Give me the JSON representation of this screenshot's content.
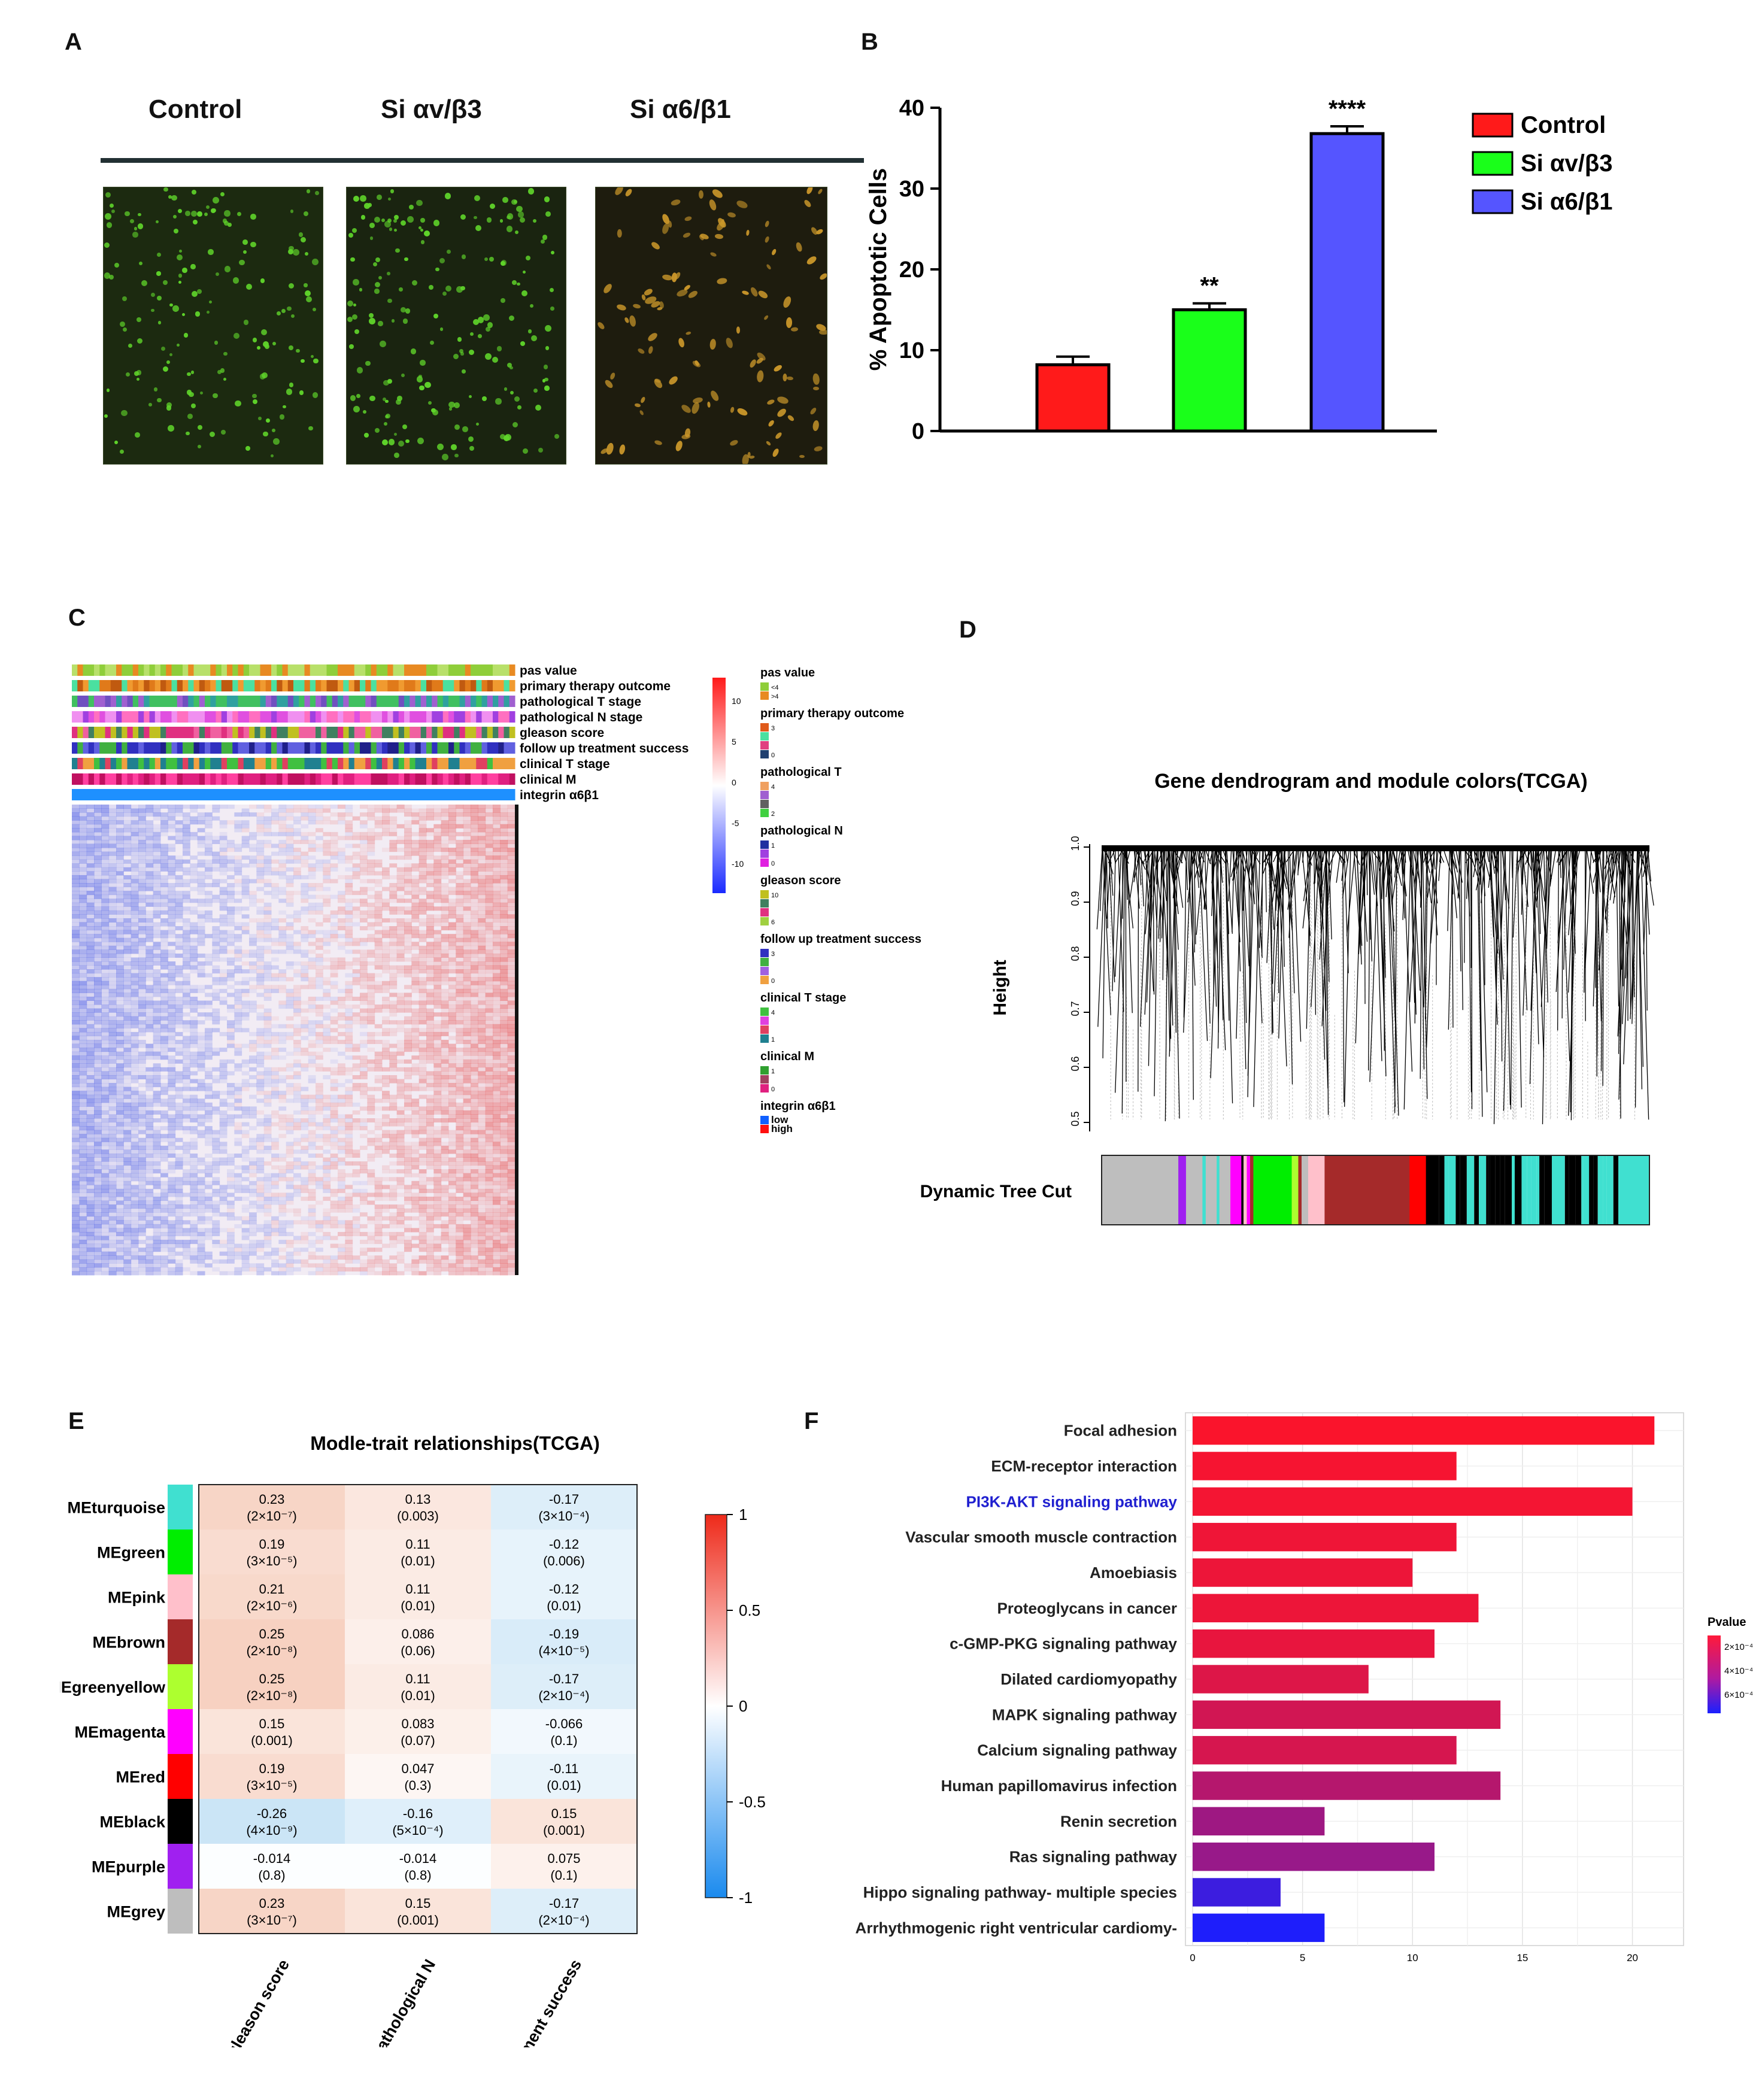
{
  "panels": {
    "A": "A",
    "B": "B",
    "C": "C",
    "D": "D",
    "E": "E",
    "F": "F"
  },
  "panelA": {
    "columns": [
      "Control",
      "Si αv/β3",
      "Si α6/β1"
    ],
    "colors": {
      "green": "#5fd42a",
      "orange": "#c9962a",
      "bg": "#1c2a10"
    }
  },
  "chart_data": [
    {
      "id": "B",
      "type": "bar",
      "categories": [
        "Control",
        "Si αv/β3",
        "Si α6/β1"
      ],
      "values": [
        8.2,
        15.0,
        36.8
      ],
      "errors": [
        1.0,
        0.8,
        0.9
      ],
      "significance": [
        "",
        "**",
        "****"
      ],
      "ylabel": "% Apoptotic Cells",
      "ylim": [
        0,
        40
      ],
      "yticks": [
        0,
        10,
        20,
        30,
        40
      ],
      "colors": [
        "#ff1a1a",
        "#1aff1a",
        "#5555ff"
      ],
      "legend": [
        "Control",
        "Si αv/β3",
        "Si α6/β1"
      ],
      "legend_position": "right"
    },
    {
      "id": "E",
      "type": "heatmap",
      "title": "Modle-trait relationships(TCGA)",
      "rows": [
        {
          "name": "MEturquoise",
          "color": "#40e0d0",
          "cells": [
            [
              "0.23",
              "(2×10⁻⁷)",
              0.23
            ],
            [
              "0.13",
              "(0.003)",
              0.13
            ],
            [
              "-0.17",
              "(3×10⁻⁴)",
              -0.17
            ]
          ]
        },
        {
          "name": "MEgreen",
          "color": "#00ee00",
          "cells": [
            [
              "0.19",
              "(3×10⁻⁵)",
              0.19
            ],
            [
              "0.11",
              "(0.01)",
              0.11
            ],
            [
              "-0.12",
              "(0.006)",
              -0.12
            ]
          ]
        },
        {
          "name": "MEpink",
          "color": "#ffc0cb",
          "cells": [
            [
              "0.21",
              "(2×10⁻⁶)",
              0.21
            ],
            [
              "0.11",
              "(0.01)",
              0.11
            ],
            [
              "-0.12",
              "(0.01)",
              -0.12
            ]
          ]
        },
        {
          "name": "MEbrown",
          "color": "#a52a2a",
          "cells": [
            [
              "0.25",
              "(2×10⁻⁸)",
              0.25
            ],
            [
              "0.086",
              "(0.06)",
              0.086
            ],
            [
              "-0.19",
              "(4×10⁻⁵)",
              -0.19
            ]
          ]
        },
        {
          "name": "MEgreenyellow",
          "color": "#adff2f",
          "cells": [
            [
              "0.25",
              "(2×10⁻⁸)",
              0.25
            ],
            [
              "0.11",
              "(0.01)",
              0.11
            ],
            [
              "-0.17",
              "(2×10⁻⁴)",
              -0.17
            ]
          ]
        },
        {
          "name": "MEmagenta",
          "color": "#ff00ff",
          "cells": [
            [
              "0.15",
              "(0.001)",
              0.15
            ],
            [
              "0.083",
              "(0.07)",
              0.083
            ],
            [
              "-0.066",
              "(0.1)",
              -0.066
            ]
          ]
        },
        {
          "name": "MEred",
          "color": "#ff0000",
          "cells": [
            [
              "0.19",
              "(3×10⁻⁵)",
              0.19
            ],
            [
              "0.047",
              "(0.3)",
              0.047
            ],
            [
              "-0.11",
              "(0.01)",
              -0.11
            ]
          ]
        },
        {
          "name": "MEblack",
          "color": "#000000",
          "cells": [
            [
              "-0.26",
              "(4×10⁻⁹)",
              -0.26
            ],
            [
              "-0.16",
              "(5×10⁻⁴)",
              -0.16
            ],
            [
              "0.15",
              "(0.001)",
              0.15
            ]
          ]
        },
        {
          "name": "MEpurple",
          "color": "#a020f0",
          "cells": [
            [
              "-0.014",
              "(0.8)",
              -0.014
            ],
            [
              "-0.014",
              "(0.8)",
              -0.014
            ],
            [
              "0.075",
              "(0.1)",
              0.075
            ]
          ]
        },
        {
          "name": "MEgrey",
          "color": "#bebebe",
          "cells": [
            [
              "0.23",
              "(3×10⁻⁷)",
              0.23
            ],
            [
              "0.15",
              "(0.001)",
              0.15
            ],
            [
              "-0.17",
              "(2×10⁻⁴)",
              -0.17
            ]
          ]
        }
      ],
      "columns": [
        "gleason score",
        "pathological N",
        "treatment success"
      ],
      "colorbar_ticks": [
        "1",
        "0.5",
        "0",
        "-0.5",
        "-1"
      ],
      "colorbar_range": [
        -1,
        1
      ]
    },
    {
      "id": "F",
      "type": "bar",
      "orientation": "horizontal",
      "categories": [
        "Focal adhesion",
        "ECM-receptor interaction",
        "PI3K-AKT signaling pathway",
        "Vascular smooth muscle contraction",
        "Amoebiasis",
        "Proteoglycans in cancer",
        "c-GMP-PKG signaling pathway",
        "Dilated cardiomyopathy",
        "MAPK signaling pathway",
        "Calcium signaling pathway",
        "Human papillomavirus infection",
        "Renin secretion",
        "Ras signaling pathway",
        "Hippo signaling pathway- multiple species",
        "Arrhythmogenic right ventricular cardiomy-"
      ],
      "values": [
        21,
        12,
        20,
        12,
        10,
        13,
        11,
        8,
        14,
        12,
        14,
        6,
        11,
        4,
        6
      ],
      "pvalue_color_t": [
        0.02,
        0.04,
        0.05,
        0.07,
        0.08,
        0.08,
        0.1,
        0.15,
        0.2,
        0.18,
        0.32,
        0.42,
        0.45,
        0.85,
        0.98
      ],
      "highlight_index": 2,
      "xticks": [
        "0",
        "5",
        "10",
        "15",
        "20"
      ],
      "xlim": [
        0,
        22
      ],
      "legend_title": "Pvalue",
      "legend_labels": [
        "2×10⁻⁴",
        "4×10⁻⁴",
        "6×10⁻⁴"
      ]
    },
    {
      "id": "D",
      "type": "dendrogram",
      "title": "Gene dendrogram and module colors(TCGA)",
      "ylabel": "Height",
      "yticks": [
        "1.0",
        "0.9",
        "0.8",
        "0.7",
        "0.6",
        "0.5"
      ],
      "colorbar_label": "Dynamic Tree Cut"
    },
    {
      "id": "C",
      "type": "heatmap",
      "tracks": [
        "pas value",
        "primary therapy outcome",
        "pathological T stage",
        "pathological N stage",
        "gleason score",
        "follow up treatment success",
        "clinical T stage",
        "clinical M",
        "integrin α6β1"
      ],
      "scale_ticks": [
        "10",
        "5",
        "0",
        "-5",
        "-10"
      ],
      "legend": [
        {
          "title": "pas value",
          "items": [
            [
              "#8fce3a",
              "<4"
            ],
            [
              "#e88a22",
              ">4"
            ]
          ]
        },
        {
          "title": "primary therapy outcome",
          "items": [
            [
              "#e05a1a",
              "3"
            ],
            [
              "#4be0a0",
              ""
            ],
            [
              "#e04080",
              ""
            ],
            [
              "#204070",
              "0"
            ]
          ]
        },
        {
          "title": "pathological T",
          "items": [
            [
              "#f0a060",
              "4"
            ],
            [
              "#a060d0",
              ""
            ],
            [
              "#606060",
              ""
            ],
            [
              "#40d040",
              "2"
            ]
          ]
        },
        {
          "title": "pathological N",
          "items": [
            [
              "#2030a0",
              "1"
            ],
            [
              "#a040e0",
              ""
            ],
            [
              "#e020e0",
              "0"
            ]
          ]
        },
        {
          "title": "gleason score",
          "items": [
            [
              "#c0c020",
              "10"
            ],
            [
              "#408060",
              ""
            ],
            [
              "#e03080",
              ""
            ],
            [
              "#a0d040",
              "6"
            ]
          ]
        },
        {
          "title": "follow up treatment success",
          "items": [
            [
              "#3030c0",
              "3"
            ],
            [
              "#40b040",
              ""
            ],
            [
              "#a060e0",
              ""
            ],
            [
              "#f0a040",
              "0"
            ]
          ]
        },
        {
          "title": "clinical T stage",
          "items": [
            [
              "#40c040",
              "4"
            ],
            [
              "#e040e0",
              ""
            ],
            [
              "#e04060",
              ""
            ],
            [
              "#208090",
              "1"
            ]
          ]
        },
        {
          "title": "clinical M",
          "items": [
            [
              "#30a030",
              "1"
            ],
            [
              "#a04060",
              ""
            ],
            [
              "#e02080",
              "0"
            ]
          ]
        },
        {
          "title": "integrin α6β1",
          "items": [
            [
              "#1060ff",
              "low"
            ],
            [
              "#ff1010",
              "high"
            ]
          ]
        }
      ]
    }
  ]
}
